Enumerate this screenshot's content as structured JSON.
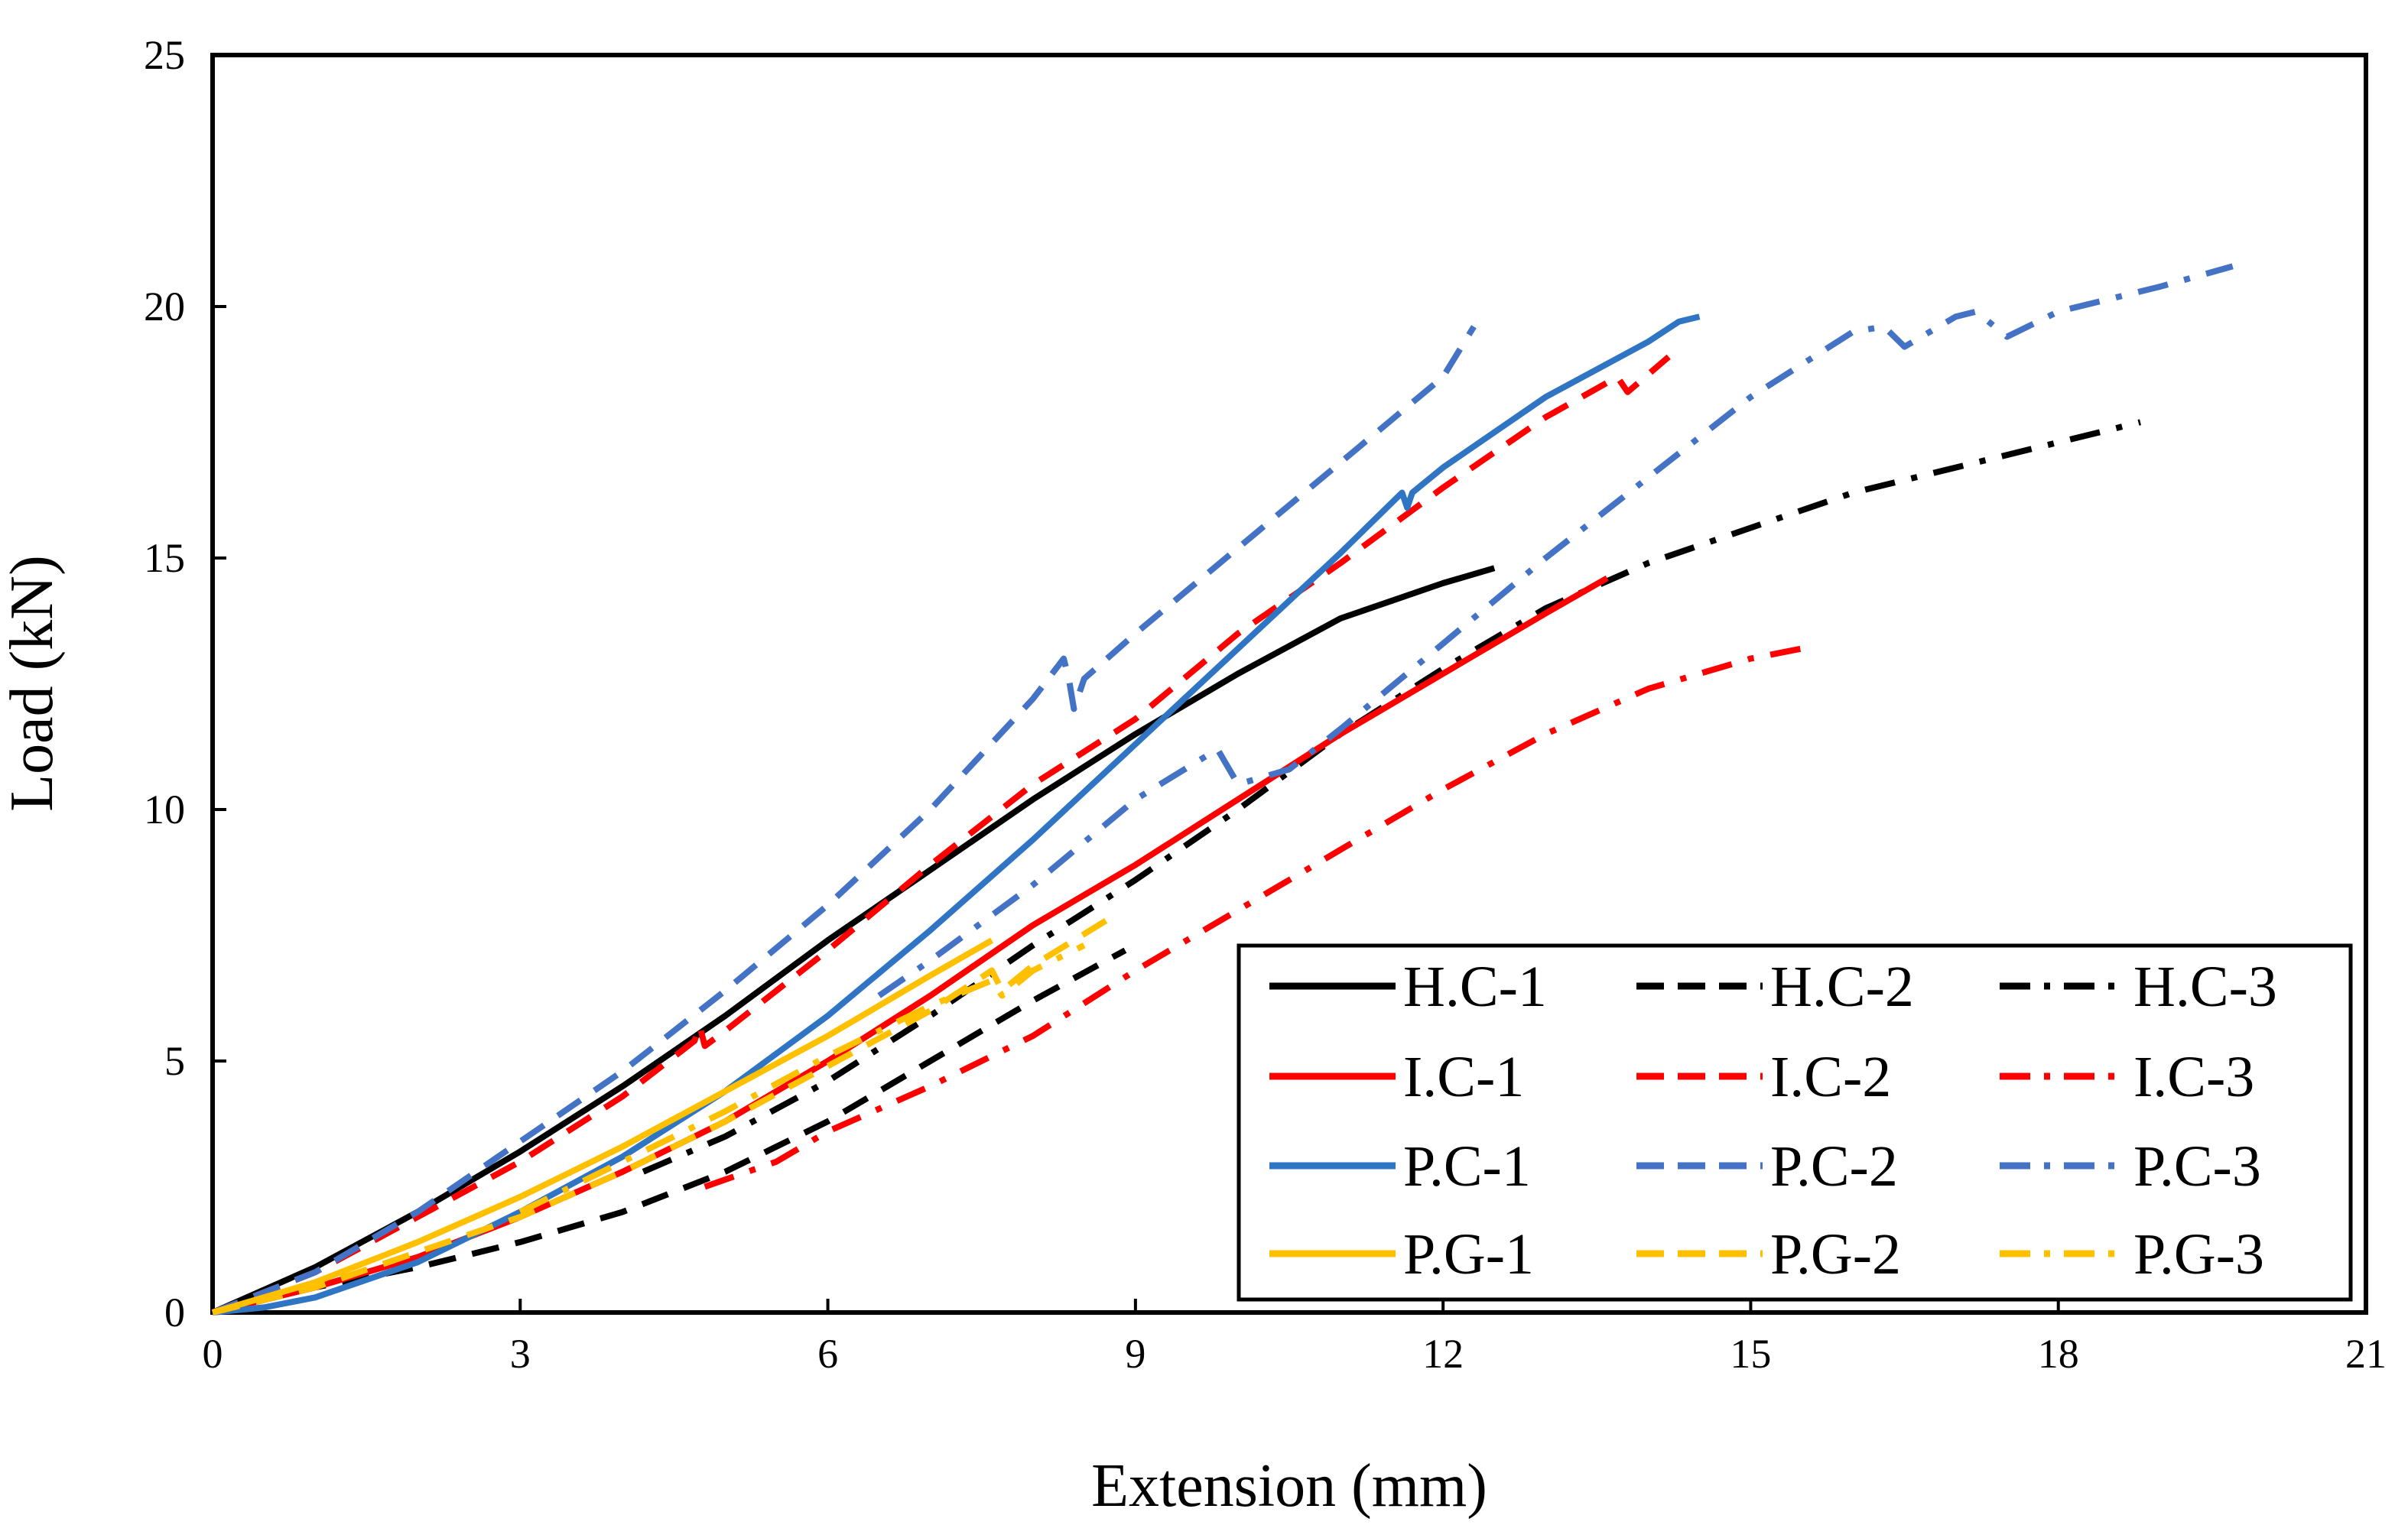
{
  "chart_data": {
    "type": "line",
    "title": "",
    "xlabel": "Extension (mm)",
    "ylabel": "Load (kN)",
    "xlim": [
      0,
      21
    ],
    "ylim": [
      0,
      25
    ],
    "x_ticks": [
      "0",
      "3",
      "6",
      "9",
      "12",
      "15",
      "18",
      "21"
    ],
    "y_ticks": [
      "0",
      "5",
      "10",
      "15",
      "20",
      "25"
    ],
    "grid": false,
    "legend_position": "bottom-right",
    "colors": {
      "H": "#000000",
      "I": "#ff0000",
      "P": "#2f75c4",
      "P2": "#4472c4",
      "G": "#ffc000"
    },
    "series": [
      {
        "name": "H.C-1",
        "color": "#000000",
        "dash": "solid",
        "x": [
          0,
          1,
          2,
          3,
          4,
          5,
          6,
          7,
          8,
          9,
          10,
          11,
          12,
          12.5
        ],
        "y": [
          0,
          0.9,
          2.0,
          3.2,
          4.5,
          5.9,
          7.4,
          8.8,
          10.2,
          11.5,
          12.7,
          13.8,
          14.5,
          14.8
        ]
      },
      {
        "name": "H.C-2",
        "color": "#000000",
        "dash": "dash",
        "x": [
          0,
          1,
          2,
          3,
          4,
          5,
          6,
          7,
          8,
          8.9
        ],
        "y": [
          0,
          0.5,
          0.9,
          1.4,
          2.0,
          2.8,
          3.8,
          5.0,
          6.2,
          7.2
        ]
      },
      {
        "name": "H.C-3",
        "color": "#000000",
        "dash": "dashdot",
        "x": [
          4.2,
          5,
          6,
          7,
          8,
          9,
          10,
          11,
          12,
          13,
          14,
          15,
          16,
          17,
          18,
          18.8
        ],
        "y": [
          2.8,
          3.5,
          4.6,
          5.9,
          7.3,
          8.6,
          10.0,
          11.5,
          12.8,
          14.0,
          14.9,
          15.6,
          16.3,
          16.8,
          17.3,
          17.7
        ]
      },
      {
        "name": "I.C-1",
        "color": "#ff0000",
        "dash": "solid",
        "x": [
          0,
          1,
          2,
          3,
          4,
          5,
          6,
          7,
          8,
          9,
          10,
          11,
          12,
          13,
          13.6
        ],
        "y": [
          0,
          0.5,
          1.1,
          1.9,
          2.8,
          3.8,
          5.0,
          6.3,
          7.7,
          8.9,
          10.2,
          11.5,
          12.7,
          13.9,
          14.6
        ]
      },
      {
        "name": "I.C-2",
        "color": "#ff0000",
        "dash": "dash",
        "x": [
          0,
          1,
          2,
          3,
          4,
          4.7,
          4.75,
          4.8,
          5,
          6,
          7,
          8,
          9,
          10,
          11,
          12,
          13,
          13.7,
          13.8,
          14.2
        ],
        "y": [
          0,
          0.8,
          1.9,
          3.0,
          4.3,
          5.4,
          5.7,
          5.3,
          5.6,
          7.2,
          8.9,
          10.5,
          11.8,
          13.5,
          14.9,
          16.4,
          17.8,
          18.6,
          18.3,
          19.0
        ]
      },
      {
        "name": "I.C-3",
        "color": "#ff0000",
        "dash": "dashdot",
        "x": [
          4.8,
          5.5,
          6,
          7,
          8,
          9,
          10,
          11,
          12,
          13,
          14,
          15,
          15.5
        ],
        "y": [
          2.5,
          3.0,
          3.6,
          4.5,
          5.5,
          6.8,
          8.0,
          9.2,
          10.4,
          11.5,
          12.4,
          13.0,
          13.2
        ]
      },
      {
        "name": "P.C-1",
        "color": "#2f75c4",
        "dash": "solid",
        "x": [
          0,
          0.5,
          1,
          2,
          3,
          4,
          5,
          6,
          7,
          8,
          9,
          10,
          11,
          11.6,
          11.65,
          11.7,
          12,
          13,
          14,
          14.3,
          14.5
        ],
        "y": [
          0,
          0.1,
          0.3,
          1.0,
          2.0,
          3.1,
          4.4,
          5.9,
          7.6,
          9.4,
          11.3,
          13.2,
          15.1,
          16.3,
          16.0,
          16.3,
          16.8,
          18.2,
          19.3,
          19.7,
          19.8
        ]
      },
      {
        "name": "P.C-2",
        "color": "#4472c4",
        "dash": "dash",
        "x": [
          0,
          1,
          2,
          3,
          4,
          5,
          6,
          7,
          8,
          8.3,
          8.35,
          8.4,
          8.5,
          9,
          10,
          11,
          12,
          12.3
        ],
        "y": [
          0,
          0.8,
          2.0,
          3.4,
          4.8,
          6.4,
          8.1,
          10.0,
          12.2,
          13.0,
          12.6,
          12.0,
          12.6,
          13.5,
          15.2,
          16.9,
          18.6,
          19.6
        ]
      },
      {
        "name": "P.C-3",
        "color": "#4472c4",
        "dash": "dashdot",
        "x": [
          6.5,
          7,
          8,
          9,
          9.8,
          10,
          10.5,
          11,
          12,
          13,
          14,
          15,
          16,
          16.3,
          16.5,
          17,
          17.2,
          17.5,
          18,
          19,
          19.7
        ],
        "y": [
          6.3,
          7.0,
          8.5,
          10.2,
          11.2,
          10.5,
          10.8,
          11.6,
          13.3,
          15.0,
          16.6,
          18.2,
          19.5,
          19.6,
          19.2,
          19.8,
          19.9,
          19.4,
          19.9,
          20.4,
          20.8
        ]
      },
      {
        "name": "P.G-1",
        "color": "#ffc000",
        "dash": "solid",
        "x": [
          0,
          1,
          2,
          3,
          4,
          5,
          6,
          7,
          7.6
        ],
        "y": [
          0,
          0.6,
          1.4,
          2.3,
          3.3,
          4.4,
          5.5,
          6.7,
          7.4
        ]
      },
      {
        "name": "P.G-2",
        "color": "#ffc000",
        "dash": "dash",
        "x": [
          0,
          1,
          2,
          3,
          4,
          5,
          6,
          7,
          7.6,
          7.7,
          8,
          8.8
        ],
        "y": [
          0,
          0.5,
          1.2,
          1.9,
          2.8,
          3.8,
          4.9,
          6.0,
          6.8,
          6.4,
          6.9,
          7.9
        ]
      },
      {
        "name": "P.G-3",
        "color": "#ffc000",
        "dash": "dashdot",
        "x": [
          3,
          4,
          5,
          6,
          7,
          7.6,
          7.7,
          8,
          8.5
        ],
        "y": [
          2.0,
          3.0,
          4.0,
          5.1,
          6.1,
          6.6,
          6.3,
          6.8,
          7.3
        ]
      }
    ]
  }
}
